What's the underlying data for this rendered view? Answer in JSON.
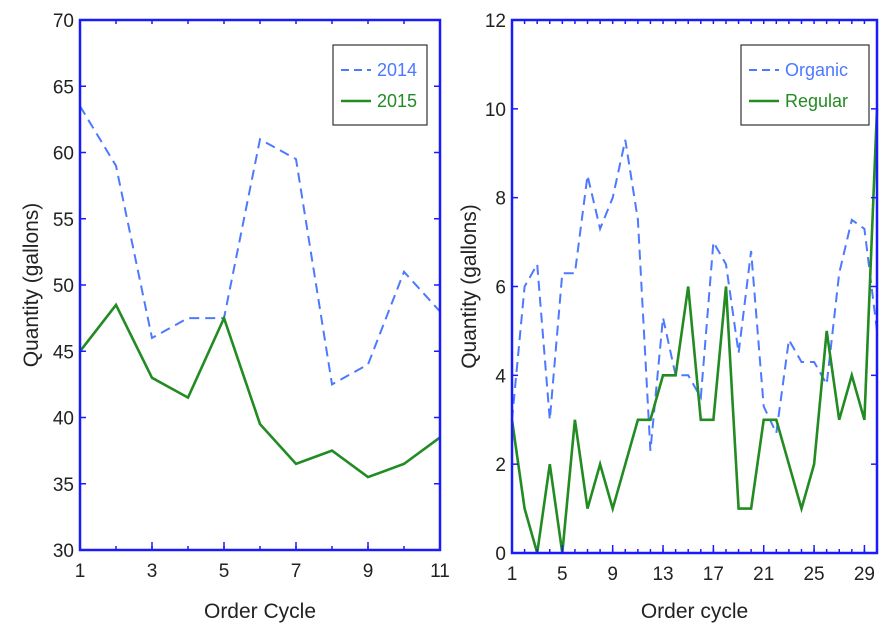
{
  "chart_data": [
    {
      "type": "line",
      "title": "",
      "xlabel": "Order Cycle",
      "ylabel": "Quantity (gallons)",
      "xlim": [
        1,
        11
      ],
      "ylim": [
        30,
        70
      ],
      "xticks": [
        1,
        3,
        5,
        7,
        9,
        11
      ],
      "yticks": [
        30,
        35,
        40,
        45,
        50,
        55,
        60,
        65,
        70
      ],
      "legend_position": "top-right",
      "x": [
        1,
        2,
        3,
        4,
        5,
        6,
        7,
        8,
        9,
        10,
        11
      ],
      "series": [
        {
          "name": "2014",
          "color": "#4d79ff",
          "dash": "dashed",
          "values": [
            63.5,
            59,
            46,
            47.5,
            47.5,
            61,
            59.5,
            42.5,
            44,
            51,
            48
          ]
        },
        {
          "name": "2015",
          "color": "#228b22",
          "dash": "solid",
          "values": [
            45,
            48.5,
            43,
            41.5,
            47.5,
            39.5,
            36.5,
            37.5,
            35.5,
            36.5,
            38.5
          ]
        }
      ]
    },
    {
      "type": "line",
      "title": "",
      "xlabel": "Order cycle",
      "ylabel": "Quantity (gallons)",
      "xlim": [
        1,
        30
      ],
      "ylim": [
        0,
        12
      ],
      "xticks": [
        1,
        5,
        9,
        13,
        17,
        21,
        25,
        29
      ],
      "yticks": [
        0,
        2,
        4,
        6,
        8,
        10,
        12
      ],
      "legend_position": "top-right",
      "x": [
        1,
        2,
        3,
        4,
        5,
        6,
        7,
        8,
        9,
        10,
        11,
        12,
        13,
        14,
        15,
        16,
        17,
        18,
        19,
        20,
        21,
        22,
        23,
        24,
        25,
        26,
        27,
        28,
        29,
        30
      ],
      "series": [
        {
          "name": "Organic",
          "color": "#4d79ff",
          "dash": "dashed",
          "values": [
            3,
            6,
            6.5,
            3,
            6.3,
            6.3,
            8.5,
            7.3,
            8,
            9.3,
            7.5,
            2.3,
            5.3,
            4,
            4,
            3.5,
            7,
            6.5,
            4.5,
            6.8,
            3.3,
            2.7,
            4.8,
            4.3,
            4.3,
            3.8,
            6.3,
            7.5,
            7.3,
            5
          ]
        },
        {
          "name": "Regular",
          "color": "#228b22",
          "dash": "solid",
          "values": [
            3,
            1,
            0,
            2,
            0,
            3,
            1,
            2,
            1,
            2,
            3,
            3,
            4,
            4,
            6,
            3,
            3,
            6,
            1,
            1,
            3,
            3,
            2,
            1,
            2,
            5,
            3,
            4,
            3,
            10
          ]
        }
      ]
    }
  ]
}
